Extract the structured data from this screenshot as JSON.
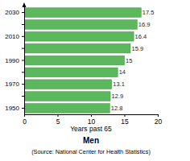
{
  "chart_data": {
    "type": "bar",
    "orientation": "horizontal",
    "title": "Men",
    "xlabel": "Years past 65",
    "categories": [
      "1950",
      null,
      "1970",
      null,
      "1990",
      null,
      "2010",
      null,
      "2030"
    ],
    "values": [
      12.8,
      12.9,
      13.1,
      14,
      15,
      15.9,
      16.4,
      16.9,
      17.5
    ],
    "color": "#5cb85c",
    "xlim": [
      0,
      20
    ],
    "xticks": [
      0,
      5,
      10,
      15,
      20
    ],
    "data_labels": true,
    "annotations": [
      "(Source: National Center for Health Statistics)"
    ]
  }
}
